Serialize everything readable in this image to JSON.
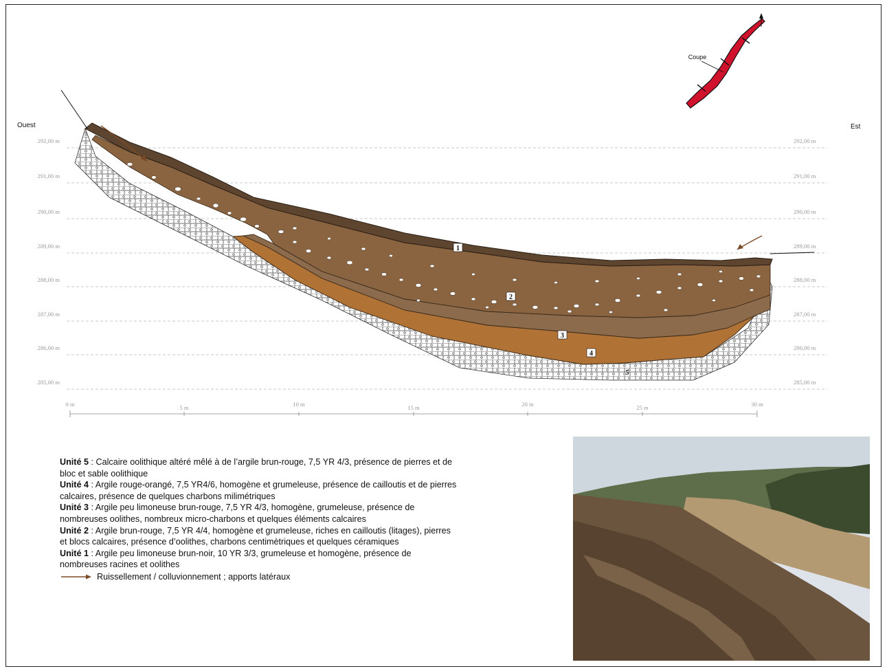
{
  "orientation": {
    "west": "Ouest",
    "east": "Est"
  },
  "inset_map": {
    "label": "Coupe",
    "route_color": "#d0122c"
  },
  "elevations": [
    "292,00 m",
    "291,00 m",
    "290,00 m",
    "289,00 m",
    "288,00 m",
    "287,00 m",
    "286,00 m",
    "285,00 m"
  ],
  "distances": [
    "0 m",
    "5 m",
    "10 m",
    "15 m",
    "20 m",
    "25 m",
    "30 m"
  ],
  "unit_markers": [
    "1",
    "2",
    "3",
    "4",
    "5"
  ],
  "colors": {
    "unit1": "#5e4530",
    "unit2": "#8a6440",
    "unit3": "#8c6a4c",
    "unit4": "#b07235",
    "limestone": "#ffffff",
    "arrow": "#7a4a25",
    "gridline": "#b8b8b8"
  },
  "legend": {
    "units": [
      {
        "name": "Unité 5",
        "text": " : Calcaire oolithique altéré mêlé à de l’argile brun-rouge, 7,5 YR 4/3, présence de pierres et de bloc et sable oolithique"
      },
      {
        "name": "Unité 4",
        "text": " : Argile rouge-orangé, 7,5 YR4/6, homogène et grumeleuse, présence de cailloutis et de pierres calcaires, présence de quelques charbons milimétriques"
      },
      {
        "name": "Unité 3",
        "text": " : Argile peu limoneuse brun-rouge, 7,5 YR 4/3, homogène, grumeleuse, présence de nombreuses oolithes, nombreux micro-charbons et quelques éléments calcaires"
      },
      {
        "name": "Unité 2",
        "text": " : Argile brun-rouge, 7,5 YR 4/4, homogène et grumeleuse, riches en cailloutis (litages), pierres et blocs calcaires, présence d’oolithes, charbons centimètriques et quelques céramiques"
      },
      {
        "name": "Unité 1",
        "text": " : Argile peu limoneuse brun-noir, 10 YR 3/3, grumeleuse et homogène, présence de nombreuses racines et oolithes"
      }
    ],
    "arrow_text": "Ruissellement / colluvionnement  ; apports latéraux"
  }
}
